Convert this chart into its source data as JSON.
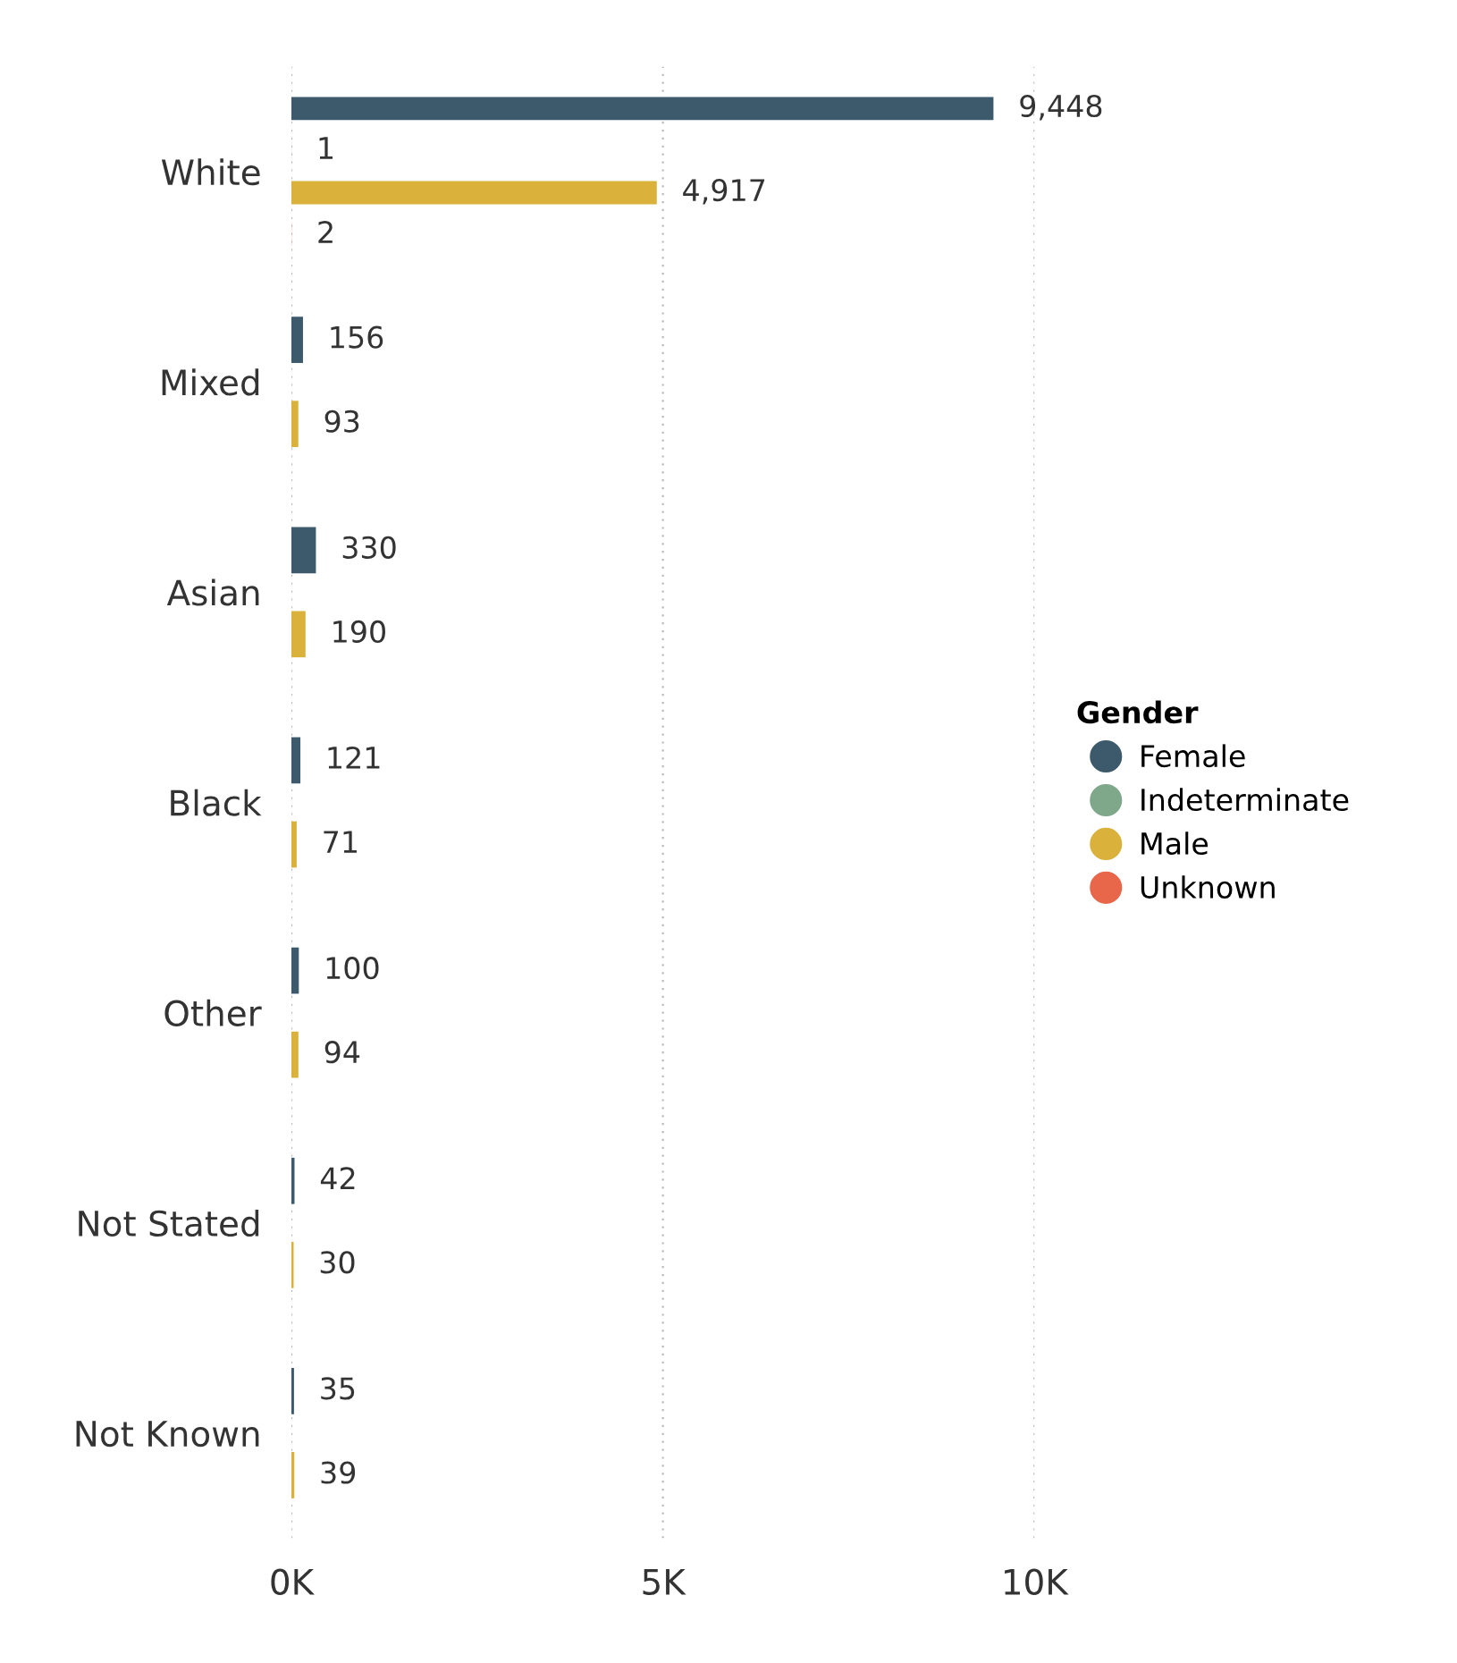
{
  "chart_data": {
    "type": "bar",
    "orientation": "horizontal",
    "legend_title": "Gender",
    "legend": "right",
    "categories": [
      "White",
      "Mixed",
      "Asian",
      "Black",
      "Other",
      "Not Stated",
      "Not Known"
    ],
    "series": [
      {
        "name": "Female",
        "color": "#3d5a6c",
        "values": [
          9448,
          156,
          330,
          121,
          100,
          42,
          35
        ],
        "value_labels": [
          "9,448",
          "156",
          "330",
          "121",
          "100",
          "42",
          "35"
        ]
      },
      {
        "name": "Indeterminate",
        "color": "#7fa88a",
        "values": [
          1,
          null,
          null,
          null,
          null,
          null,
          null
        ],
        "value_labels": [
          "1",
          null,
          null,
          null,
          null,
          null,
          null
        ]
      },
      {
        "name": "Male",
        "color": "#d9b13b",
        "values": [
          4917,
          93,
          190,
          71,
          94,
          30,
          39
        ],
        "value_labels": [
          "4,917",
          "93",
          "190",
          "71",
          "94",
          "30",
          "39"
        ]
      },
      {
        "name": "Unknown",
        "color": "#e8664a",
        "values": [
          2,
          null,
          null,
          null,
          null,
          null,
          null
        ],
        "value_labels": [
          "2",
          null,
          null,
          null,
          null,
          null,
          null
        ]
      }
    ],
    "xlim": [
      0,
      10000
    ],
    "xticks": [
      {
        "value": 0,
        "label": "0K"
      },
      {
        "value": 5000,
        "label": "5K"
      },
      {
        "value": 10000,
        "label": "10K"
      }
    ],
    "grid": "x"
  }
}
